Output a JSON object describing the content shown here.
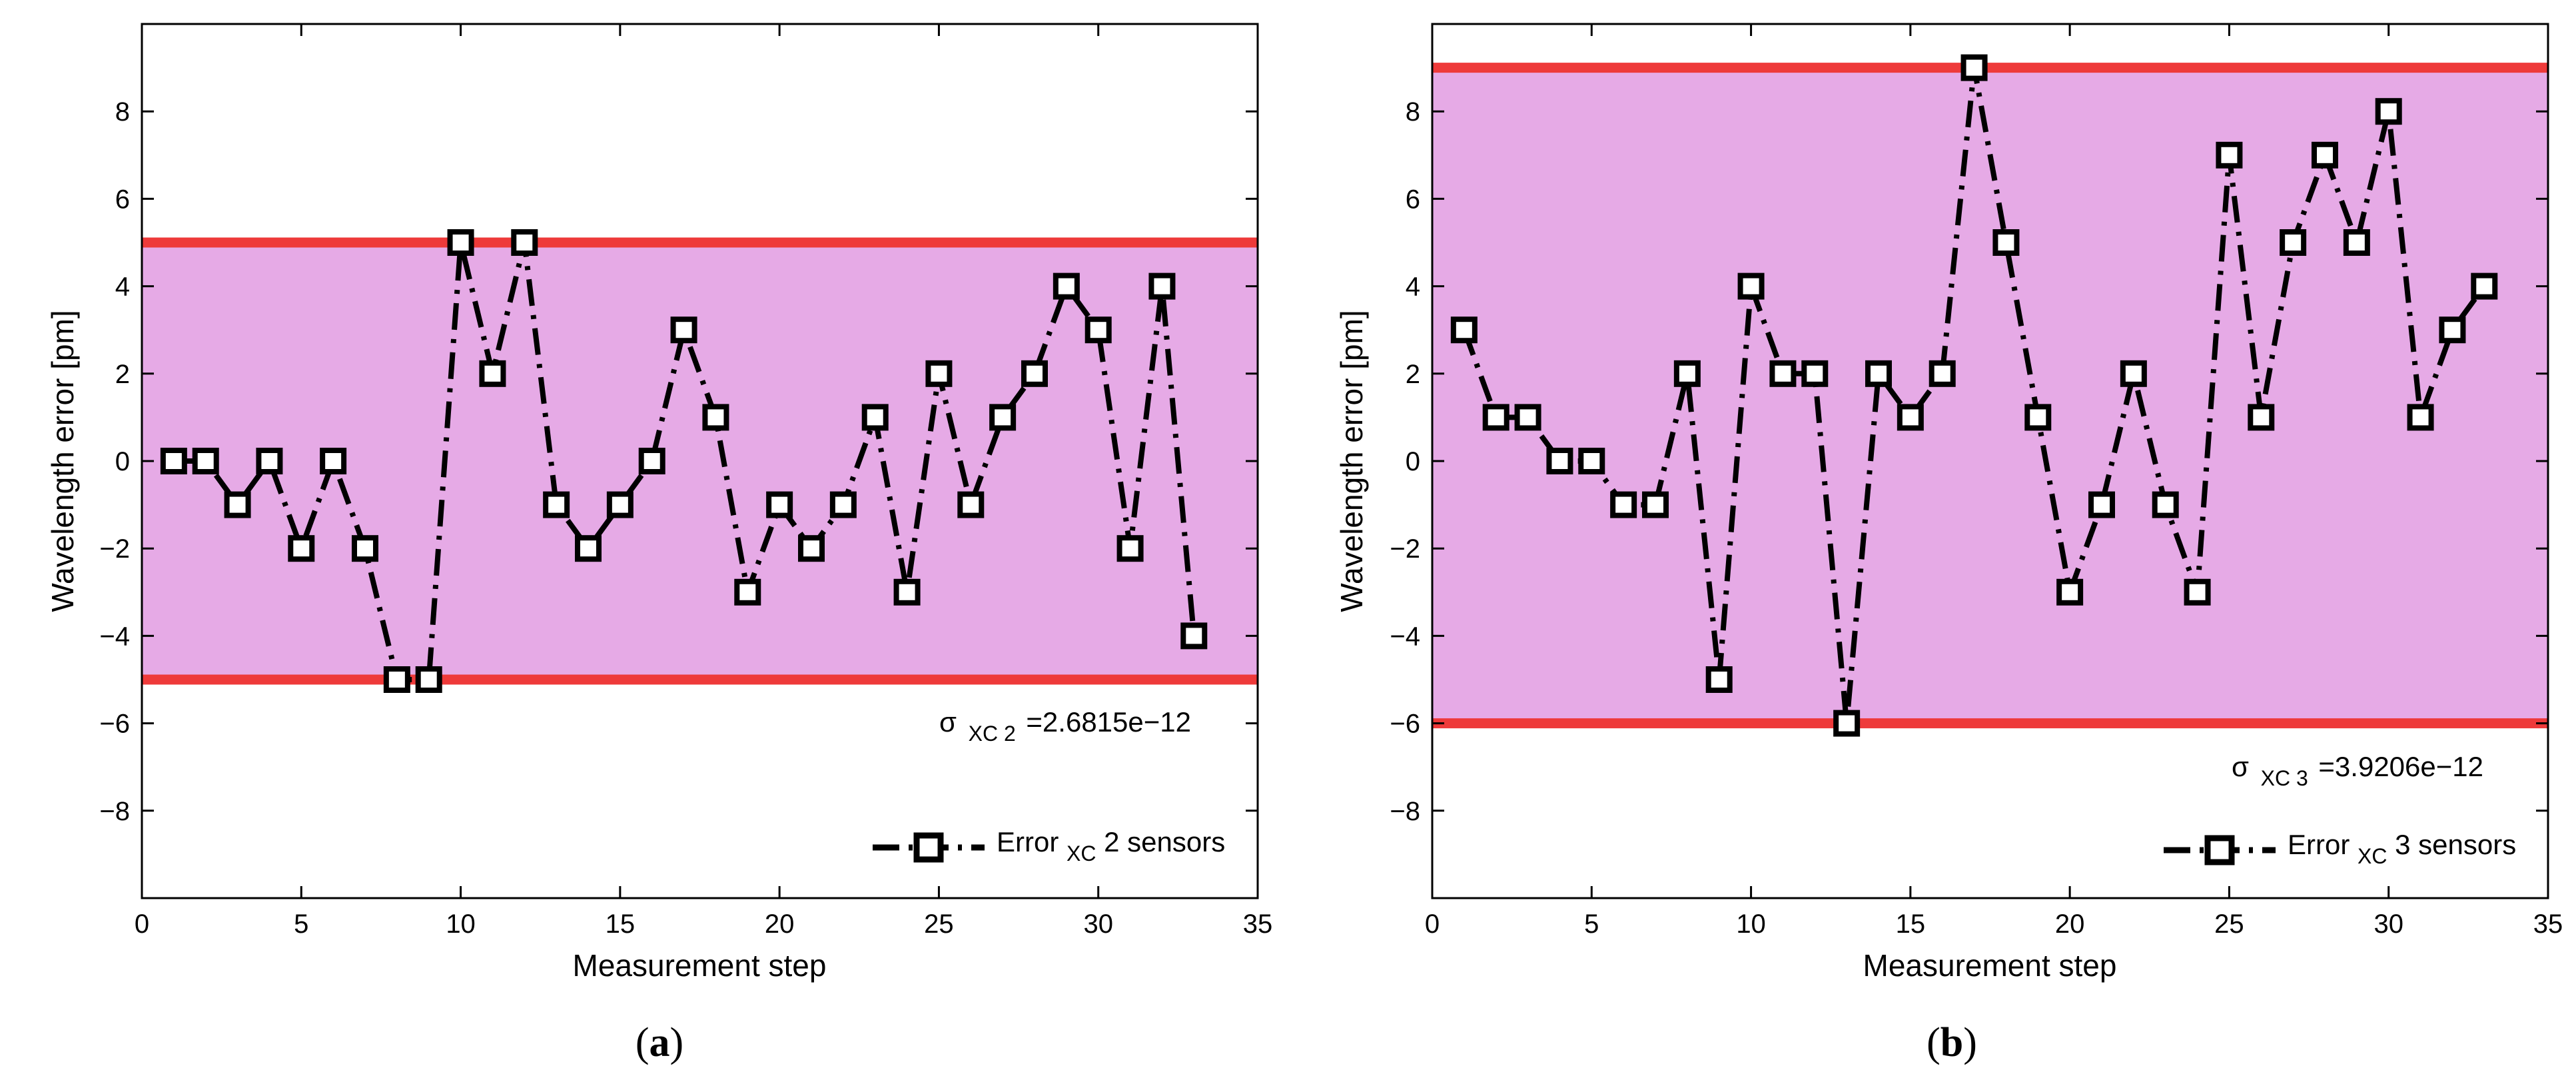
{
  "chart_data": [
    {
      "type": "line",
      "panel_label": "a",
      "xlabel": "Measurement step",
      "ylabel": "Wavelength error [pm]",
      "xlim": [
        0,
        35
      ],
      "ylim": [
        -10,
        10
      ],
      "xticks": [
        0,
        5,
        10,
        15,
        20,
        25,
        30,
        35
      ],
      "yticks": [
        -8,
        -6,
        -4,
        -2,
        0,
        2,
        4,
        6,
        8
      ],
      "band": {
        "upper": 5,
        "lower": -5,
        "fill_color": "#e6aae6",
        "line_color": "#ee3a3a"
      },
      "annotation": {
        "symbol": "σ",
        "subscript": "XC 2",
        "text": "=2.6815e−12"
      },
      "legend": {
        "name": "Error",
        "subscript": "XC",
        "suffix": " 2 sensors",
        "position": "bottom-right"
      },
      "series": [
        {
          "name": "Error XC 2 sensors",
          "color": "#000000",
          "x": [
            1,
            2,
            3,
            4,
            5,
            6,
            7,
            8,
            9,
            10,
            11,
            12,
            13,
            14,
            15,
            16,
            17,
            18,
            19,
            20,
            21,
            22,
            23,
            24,
            25,
            26,
            27,
            28,
            29,
            30,
            31,
            32,
            33
          ],
          "values": [
            0,
            0,
            -1,
            0,
            -2,
            0,
            -2,
            -5,
            -5,
            5,
            2,
            5,
            -1,
            -2,
            -1,
            0,
            3,
            1,
            -3,
            -1,
            -2,
            -1,
            1,
            -3,
            2,
            -1,
            1,
            2,
            4,
            3,
            -2,
            4,
            -4
          ]
        }
      ]
    },
    {
      "type": "line",
      "panel_label": "b",
      "xlabel": "Measurement step",
      "ylabel": "Wavelength error [pm]",
      "xlim": [
        0,
        35
      ],
      "ylim": [
        -10,
        10
      ],
      "xticks": [
        0,
        5,
        10,
        15,
        20,
        25,
        30,
        35
      ],
      "yticks": [
        -8,
        -6,
        -4,
        -2,
        0,
        2,
        4,
        6,
        8
      ],
      "band": {
        "upper": 9,
        "lower": -6,
        "fill_color": "#e6aae6",
        "line_color": "#ee3a3a"
      },
      "annotation": {
        "symbol": "σ",
        "subscript": "XC 3",
        "text": "=3.9206e−12"
      },
      "legend": {
        "name": "Error",
        "subscript": "XC",
        "suffix": " 3 sensors",
        "position": "bottom-right"
      },
      "series": [
        {
          "name": "Error XC 3 sensors",
          "color": "#000000",
          "x": [
            1,
            2,
            3,
            4,
            5,
            6,
            7,
            8,
            9,
            10,
            11,
            12,
            13,
            14,
            15,
            16,
            17,
            18,
            19,
            20,
            21,
            22,
            23,
            24,
            25,
            26,
            27,
            28,
            29,
            30,
            31,
            32,
            33
          ],
          "values": [
            3,
            1,
            1,
            0,
            0,
            -1,
            -1,
            2,
            -5,
            4,
            2,
            2,
            -6,
            2,
            1,
            2,
            9,
            5,
            1,
            -3,
            -1,
            2,
            -1,
            -3,
            7,
            1,
            5,
            7,
            5,
            8,
            1,
            3,
            4
          ]
        }
      ]
    }
  ],
  "captions": [
    {
      "open": "(",
      "letter": "a",
      "close": ")"
    },
    {
      "open": "(",
      "letter": "b",
      "close": ")"
    }
  ]
}
